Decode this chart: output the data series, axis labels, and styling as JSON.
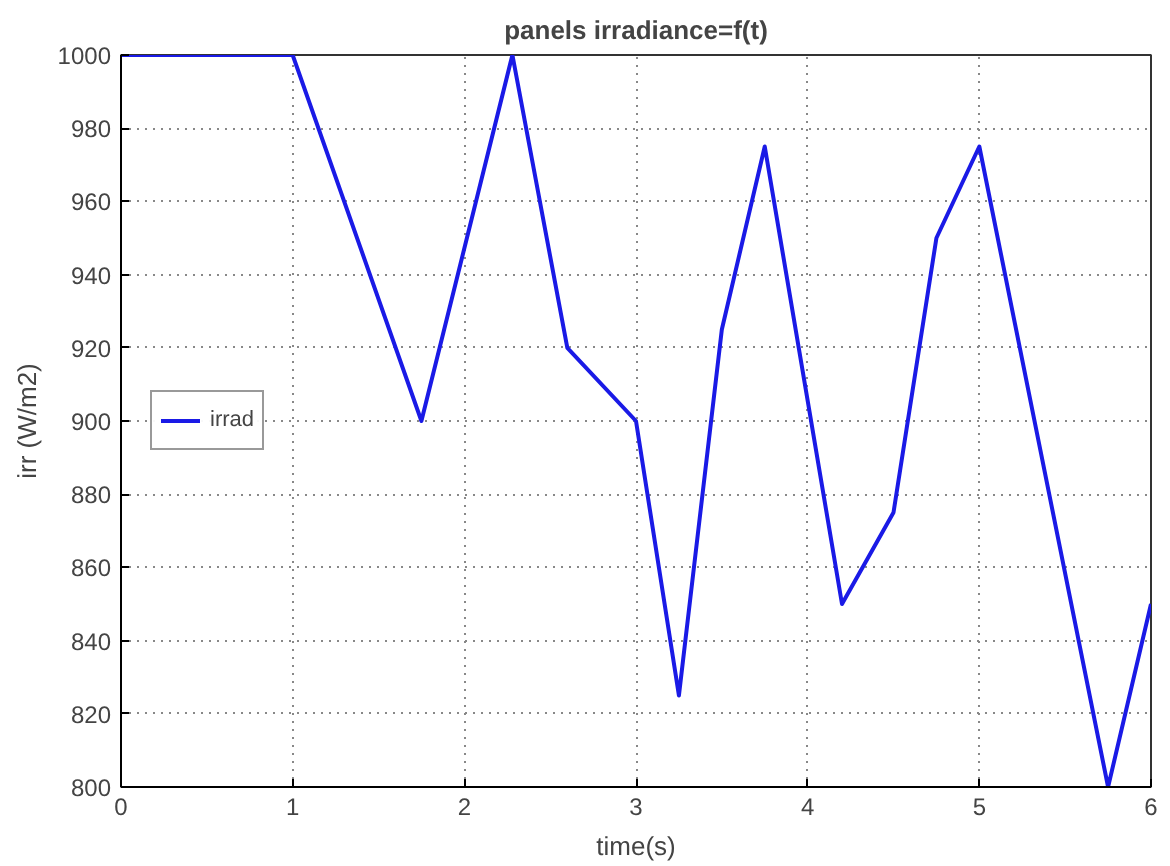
{
  "chart_data": {
    "type": "line",
    "title": "panels irradiance=f(t)",
    "xlabel": "time(s)",
    "ylabel": "irr (W/m2)",
    "x": [
      0,
      1,
      1.75,
      2.28,
      2.6,
      3,
      3.25,
      3.5,
      3.75,
      4.2,
      4.5,
      4.75,
      5,
      5.75,
      6
    ],
    "series": [
      {
        "name": "irrad",
        "color": "#1a1ae6",
        "values": [
          1000,
          1000,
          900,
          1000,
          920,
          900,
          825,
          925,
          975,
          850,
          875,
          950,
          975,
          800,
          850
        ]
      }
    ],
    "xlim": [
      0,
      6
    ],
    "xticks": [
      0,
      1,
      2,
      3,
      4,
      5,
      6
    ],
    "ylim": [
      800,
      1000
    ],
    "yticks": [
      800,
      820,
      840,
      860,
      880,
      900,
      920,
      940,
      960,
      980,
      1000
    ],
    "grid": true,
    "legend": "left",
    "marker": "none",
    "line_style": "solid"
  }
}
